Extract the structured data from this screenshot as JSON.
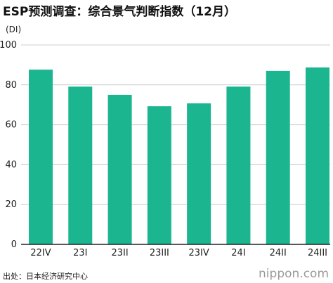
{
  "title": "ESP预测调查：综合景气判断指数（12月）",
  "source": "出处：日本经济研究中心",
  "brand": "nippon.com",
  "colors": {
    "bar": "#1bb58f",
    "grid": "#cfcfcf",
    "axis": "#222222",
    "text": "#222222"
  },
  "chart_data": {
    "type": "bar",
    "title": "ESP预测调查：综合景气判断指数（12月）",
    "ylabel": "(DI)",
    "xlabel": "",
    "ylim": [
      0,
      100
    ],
    "yticks": [
      0,
      20,
      40,
      60,
      80,
      100
    ],
    "grid": true,
    "categories": [
      "22IV",
      "23I",
      "23II",
      "23III",
      "23IV",
      "24I",
      "24II",
      "24III"
    ],
    "values": [
      87.6,
      79.1,
      75.0,
      69.3,
      70.7,
      79.1,
      87.0,
      88.7
    ]
  }
}
